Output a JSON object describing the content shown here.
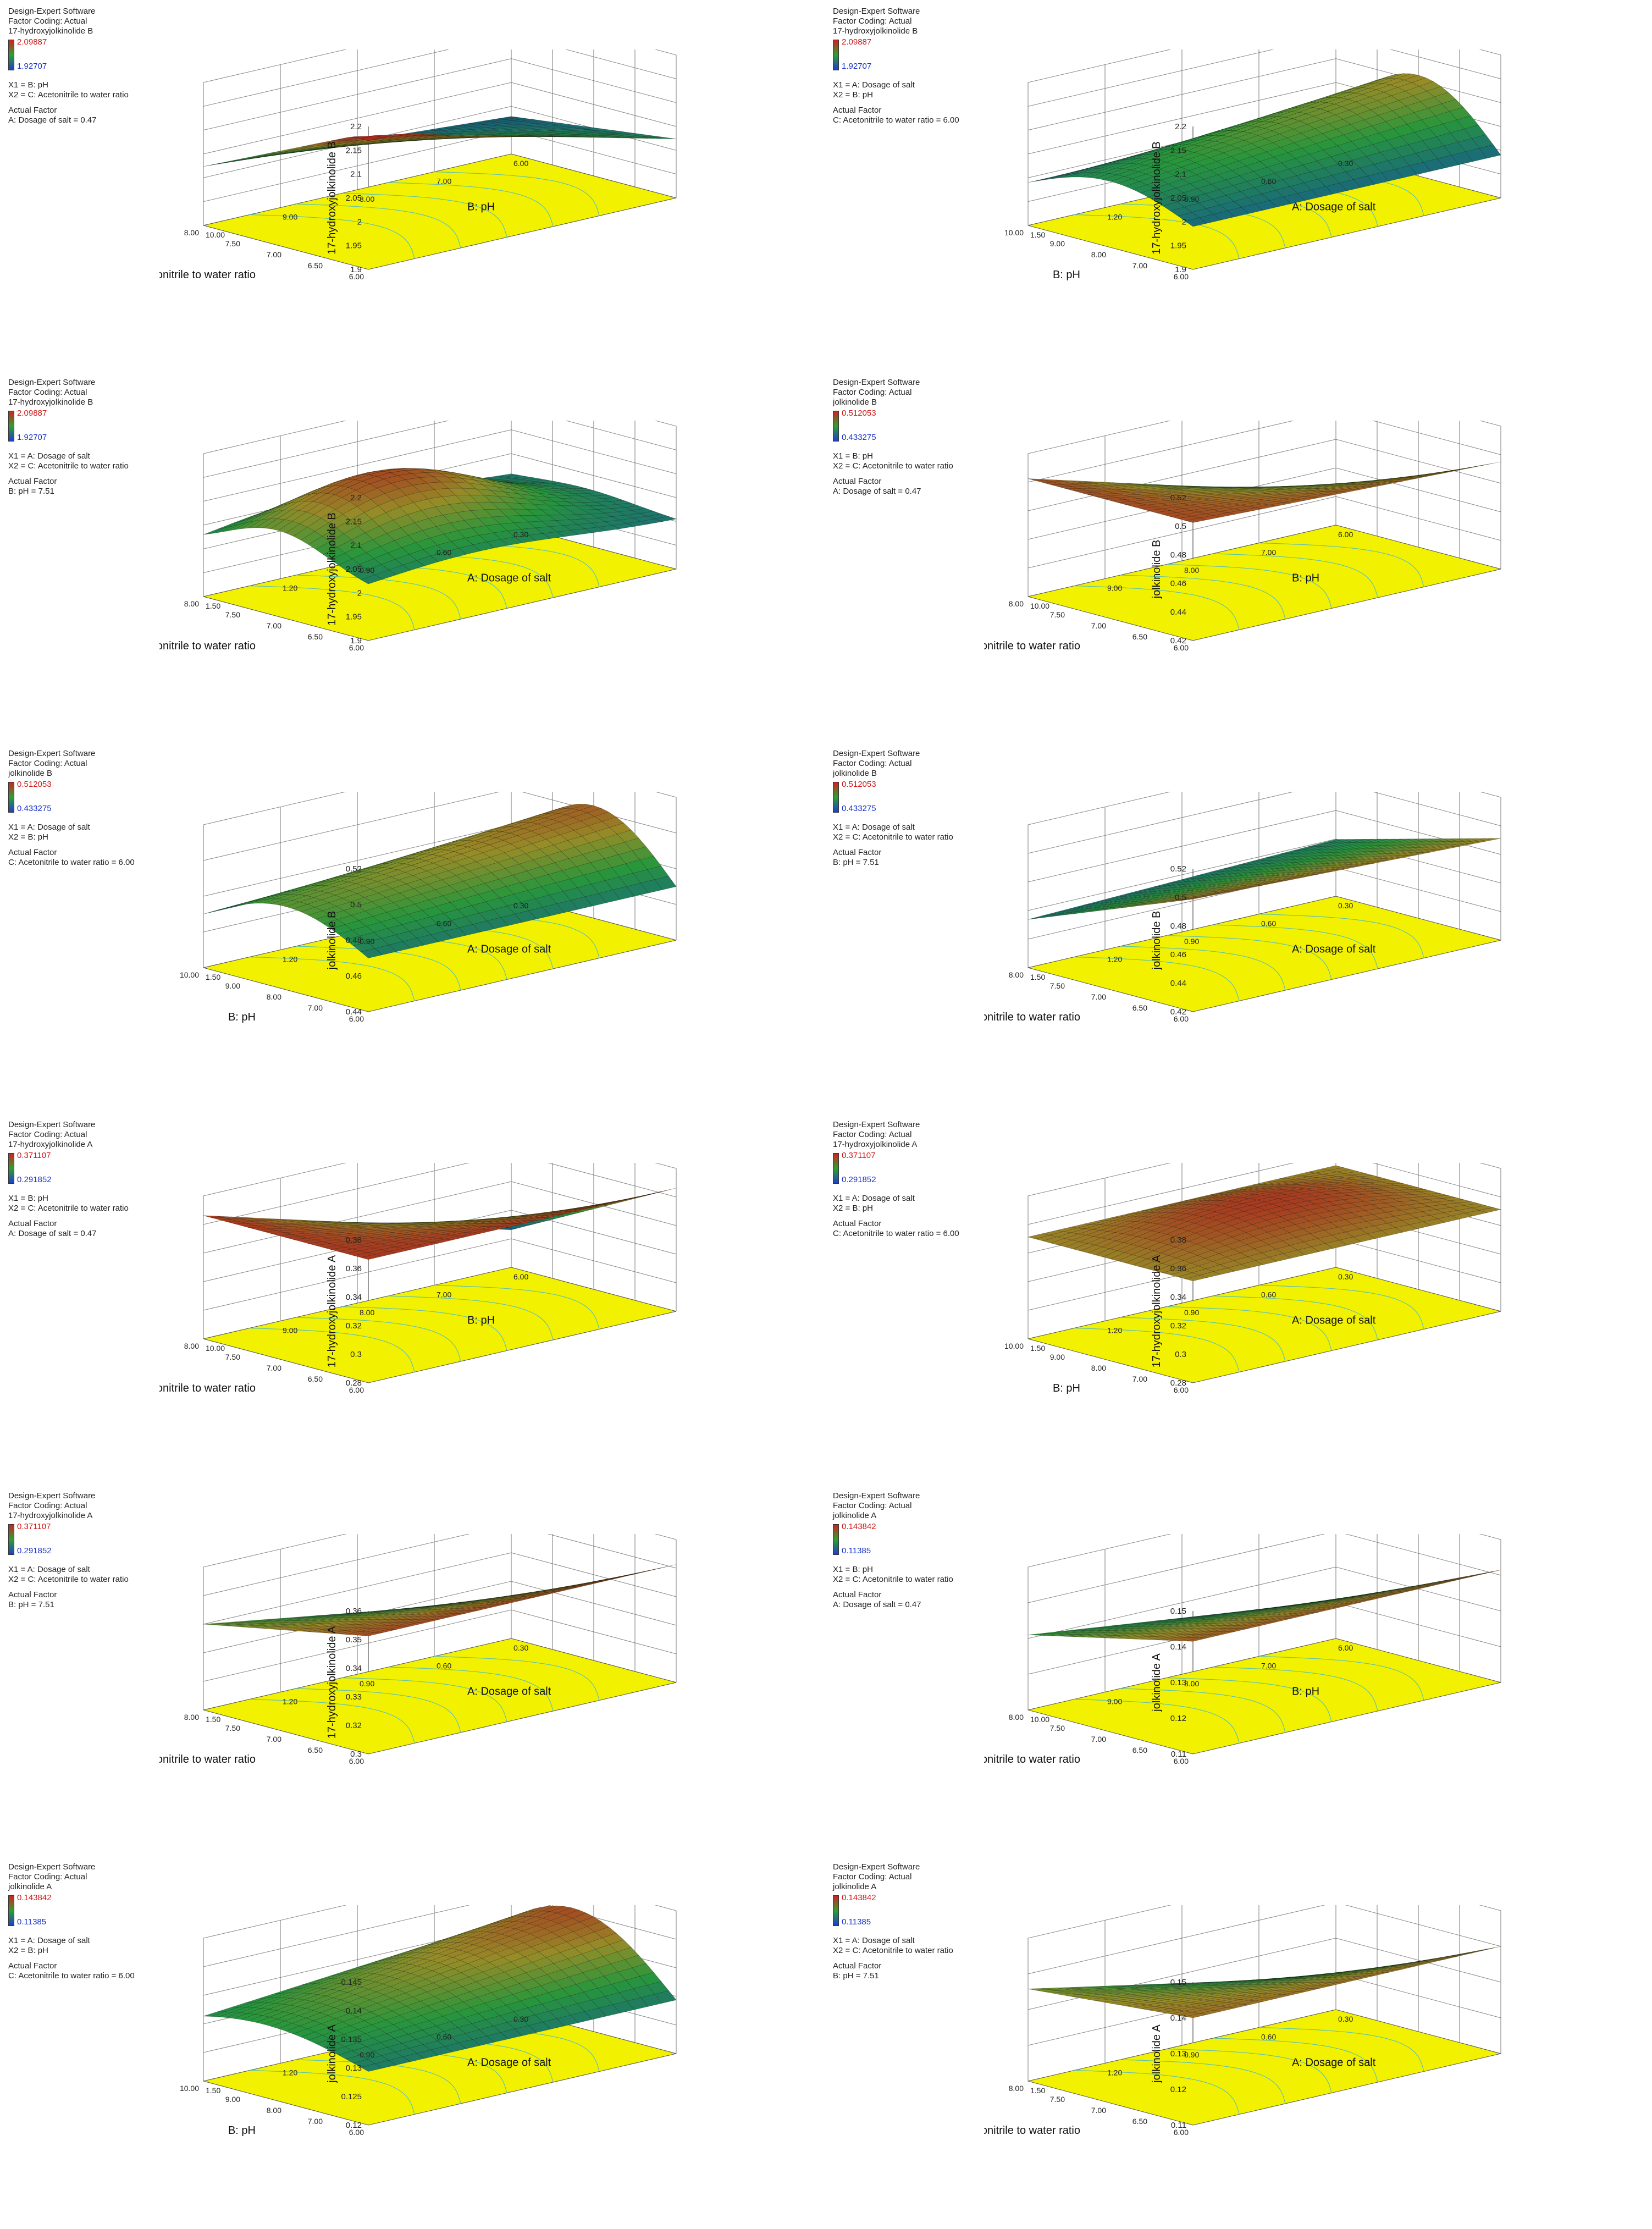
{
  "figure": {
    "software": "Design-Expert  Software",
    "coding": "Factor Coding: Actual",
    "factors": {
      "A": "A: Dosage of salt",
      "B": "B: pH",
      "C": "C: Acetonitrile to water ratio"
    },
    "actual_factor_header": "Actual Factor"
  },
  "chart_data": [
    {
      "type": "surface3d",
      "resp": "17-hydroxyjolkinolide B",
      "ylabel": "17-hydroxyjolkinolide B",
      "cmax": "2.09887",
      "cmin": "1.92707",
      "x1": "X1 = B: pH",
      "x2": "X2 = C: Acetonitrile to water ratio",
      "actual": "A: Dosage of salt = 0.47",
      "zticks": [
        "2.2",
        "2.15",
        "2.1",
        "2.05",
        "2",
        "1.95",
        "1.9"
      ],
      "xaxis": {
        "label": "C: Acetonitrile to water ratio",
        "ticks": [
          "6.00",
          "6.50",
          "7.00",
          "7.50",
          "8.00"
        ]
      },
      "yaxis": {
        "label": "B: pH",
        "ticks": [
          "10.00",
          "9.00",
          "8.00",
          "7.00",
          "6.00"
        ]
      }
    },
    {
      "type": "surface3d",
      "resp": "17-hydroxyjolkinolide B",
      "ylabel": "17-hydroxyjolkinolide B",
      "cmax": "2.09887",
      "cmin": "1.92707",
      "x1": "X1 = A: Dosage of salt",
      "x2": "X2 = B: pH",
      "actual": "C: Acetonitrile to water ratio = 6.00",
      "zticks": [
        "2.2",
        "2.15",
        "2.1",
        "2.05",
        "2",
        "1.95",
        "1.9"
      ],
      "xaxis": {
        "label": "B: pH",
        "ticks": [
          "6.00",
          "7.00",
          "8.00",
          "9.00",
          "10.00"
        ]
      },
      "yaxis": {
        "label": "A: Dosage of salt",
        "ticks": [
          "1.50",
          "1.20",
          "0.90",
          "0.60",
          "0.30"
        ]
      }
    },
    {
      "type": "surface3d",
      "resp": "17-hydroxyjolkinolide B",
      "ylabel": "17-hydroxyjolkinolide B",
      "cmax": "2.09887",
      "cmin": "1.92707",
      "x1": "X1 = A: Dosage of salt",
      "x2": "X2 = C: Acetonitrile to water ratio",
      "actual": "B: pH = 7.51",
      "zticks": [
        "2.2",
        "2.15",
        "2.1",
        "2.05",
        "2",
        "1.95",
        "1.9"
      ],
      "xaxis": {
        "label": "C: Acetonitrile to water ratio",
        "ticks": [
          "6.00",
          "6.50",
          "7.00",
          "7.50",
          "8.00"
        ]
      },
      "yaxis": {
        "label": "A: Dosage of salt",
        "ticks": [
          "1.50",
          "1.20",
          "0.90",
          "0.60",
          "0.30"
        ]
      }
    },
    {
      "type": "surface3d",
      "resp": "jolkinolide B",
      "ylabel": "jolkinolide B",
      "cmax": "0.512053",
      "cmin": "0.433275",
      "x1": "X1 = B: pH",
      "x2": "X2 = C: Acetonitrile to water ratio",
      "actual": "A: Dosage of salt = 0.47",
      "zticks": [
        "0.52",
        "0.5",
        "0.48",
        "0.46",
        "0.44",
        "0.42"
      ],
      "xaxis": {
        "label": "C: Acetonitrile to water ratio",
        "ticks": [
          "6.00",
          "6.50",
          "7.00",
          "7.50",
          "8.00"
        ]
      },
      "yaxis": {
        "label": "B: pH",
        "ticks": [
          "10.00",
          "9.00",
          "8.00",
          "7.00",
          "6.00"
        ]
      }
    },
    {
      "type": "surface3d",
      "resp": "jolkinolide B",
      "ylabel": "jolkinolide B",
      "cmax": "0.512053",
      "cmin": "0.433275",
      "x1": "X1 = A: Dosage of salt",
      "x2": "X2 = B: pH",
      "actual": "C: Acetonitrile to water ratio = 6.00",
      "zticks": [
        "0.52",
        "0.5",
        "0.48",
        "0.46",
        "0.44"
      ],
      "xaxis": {
        "label": "B:  pH",
        "ticks": [
          "6.00",
          "7.00",
          "8.00",
          "9.00",
          "10.00"
        ]
      },
      "yaxis": {
        "label": "A: Dosage of salt",
        "ticks": [
          "1.50",
          "1.20",
          "0.90",
          "0.60",
          "0.30"
        ]
      }
    },
    {
      "type": "surface3d",
      "resp": "jolkinolide B",
      "ylabel": "jolkinolide B",
      "cmax": "0.512053",
      "cmin": "0.433275",
      "x1": "X1 = A: Dosage of salt",
      "x2": "X2 = C: Acetonitrile to water ratio",
      "actual": "B: pH  = 7.51",
      "zticks": [
        "0.52",
        "0.5",
        "0.48",
        "0.46",
        "0.44",
        "0.42"
      ],
      "xaxis": {
        "label": "C: Acetonitrile to water ratio",
        "ticks": [
          "6.00",
          "6.50",
          "7.00",
          "7.50",
          "8.00"
        ]
      },
      "yaxis": {
        "label": "A: Dosage of salt",
        "ticks": [
          "1.50",
          "1.20",
          "0.90",
          "0.60",
          "0.30"
        ]
      }
    },
    {
      "type": "surface3d",
      "resp": "17-hydroxyjolkinolide A",
      "ylabel": "17-hydroxyjolkinolide A",
      "cmax": "0.371107",
      "cmin": "0.291852",
      "x1": "X1 = B: pH",
      "x2": "X2 = C: Acetonitrile to water ratio",
      "actual": "A: Dosage of salt = 0.47",
      "zticks": [
        "0.38",
        "0.36",
        "0.34",
        "0.32",
        "0.3",
        "0.28"
      ],
      "xaxis": {
        "label": "C: Acetonitrile to water ratio",
        "ticks": [
          "6.00",
          "6.50",
          "7.00",
          "7.50",
          "8.00"
        ]
      },
      "yaxis": {
        "label": "B: pH",
        "ticks": [
          "10.00",
          "9.00",
          "8.00",
          "7.00",
          "6.00"
        ]
      }
    },
    {
      "type": "surface3d",
      "resp": "17-hydroxyjolkinolide A",
      "ylabel": "17-hydroxyjolkinolide A",
      "cmax": "0.371107",
      "cmin": "0.291852",
      "x1": "X1 = A: Dosage of salt",
      "x2": "X2 = B: pH",
      "actual": "C: Acetonitrile to water ratio = 6.00",
      "zticks": [
        "0.38",
        "0.36",
        "0.34",
        "0.32",
        "0.3",
        "0.28"
      ],
      "xaxis": {
        "label": "B: pH",
        "ticks": [
          "6.00",
          "7.00",
          "8.00",
          "9.00",
          "10.00"
        ]
      },
      "yaxis": {
        "label": "A: Dosage of salt",
        "ticks": [
          "1.50",
          "1.20",
          "0.90",
          "0.60",
          "0.30"
        ]
      }
    },
    {
      "type": "surface3d",
      "resp": "17-hydroxyjolkinolide A",
      "ylabel": "17-hydroxyjolkinolide A",
      "cmax": "0.371107",
      "cmin": "0.291852",
      "x1": "X1 = A: Dosage of salt",
      "x2": "X2 = C: Acetonitrile to water ratio",
      "actual": "B: pH  = 7.51",
      "zticks": [
        "0.36",
        "0.35",
        "0.34",
        "0.33",
        "0.32",
        "0.3"
      ],
      "xaxis": {
        "label": "C: Acetonitrile to water ratio",
        "ticks": [
          "6.00",
          "6.50",
          "7.00",
          "7.50",
          "8.00"
        ]
      },
      "yaxis": {
        "label": "A: Dosage of salt",
        "ticks": [
          "1.50",
          "1.20",
          "0.90",
          "0.60",
          "0.30"
        ]
      }
    },
    {
      "type": "surface3d",
      "resp": "jolkinolide A",
      "ylabel": "jolkinolide A",
      "cmax": "0.143842",
      "cmin": "0.11385",
      "x1": "X1 = B: pH",
      "x2": "X2 = C: Acetonitrile to water ratio",
      "actual": "A: Dosage of salt = 0.47",
      "zticks": [
        "0.15",
        "0.14",
        "0.13",
        "0.12",
        "0.11"
      ],
      "xaxis": {
        "label": "C: Acetonitrile to water ratio",
        "ticks": [
          "6.00",
          "6.50",
          "7.00",
          "7.50",
          "8.00"
        ]
      },
      "yaxis": {
        "label": "B: pH",
        "ticks": [
          "10.00",
          "9.00",
          "8.00",
          "7.00",
          "6.00"
        ]
      }
    },
    {
      "type": "surface3d",
      "resp": "jolkinolide A",
      "ylabel": "jolkinolide A",
      "cmax": "0.143842",
      "cmin": "0.11385",
      "x1": "X1 = A: Dosage of salt",
      "x2": "X2 = B: pH",
      "actual": "C: Acetonitrile to water ratio = 6.00",
      "zticks": [
        "0.145",
        "0.14",
        "0.135",
        "0.13",
        "0.125",
        "0.12"
      ],
      "xaxis": {
        "label": "B: pH",
        "ticks": [
          "6.00",
          "7.00",
          "8.00",
          "9.00",
          "10.00"
        ]
      },
      "yaxis": {
        "label": "A: Dosage of salt",
        "ticks": [
          "1.50",
          "1.20",
          "0.90",
          "0.60",
          "0.30"
        ]
      }
    },
    {
      "type": "surface3d",
      "resp": "jolkinolide A",
      "ylabel": "jolkinolide A",
      "cmax": "0.143842",
      "cmin": "0.11385",
      "x1": "X1 = A: Dosage of salt",
      "x2": "X2 = C: Acetonitrile to water ratio",
      "actual": "B: pH  = 7.51",
      "zticks": [
        "0.15",
        "0.14",
        "0.13",
        "0.12",
        "0.11"
      ],
      "xaxis": {
        "label": "C: Acetonitrile to water ratio",
        "ticks": [
          "6.00",
          "6.50",
          "7.00",
          "7.50",
          "8.00"
        ]
      },
      "yaxis": {
        "label": "A: Dosage of salt",
        "ticks": [
          "1.50",
          "1.20",
          "0.90",
          "0.60",
          "0.30"
        ]
      }
    }
  ]
}
